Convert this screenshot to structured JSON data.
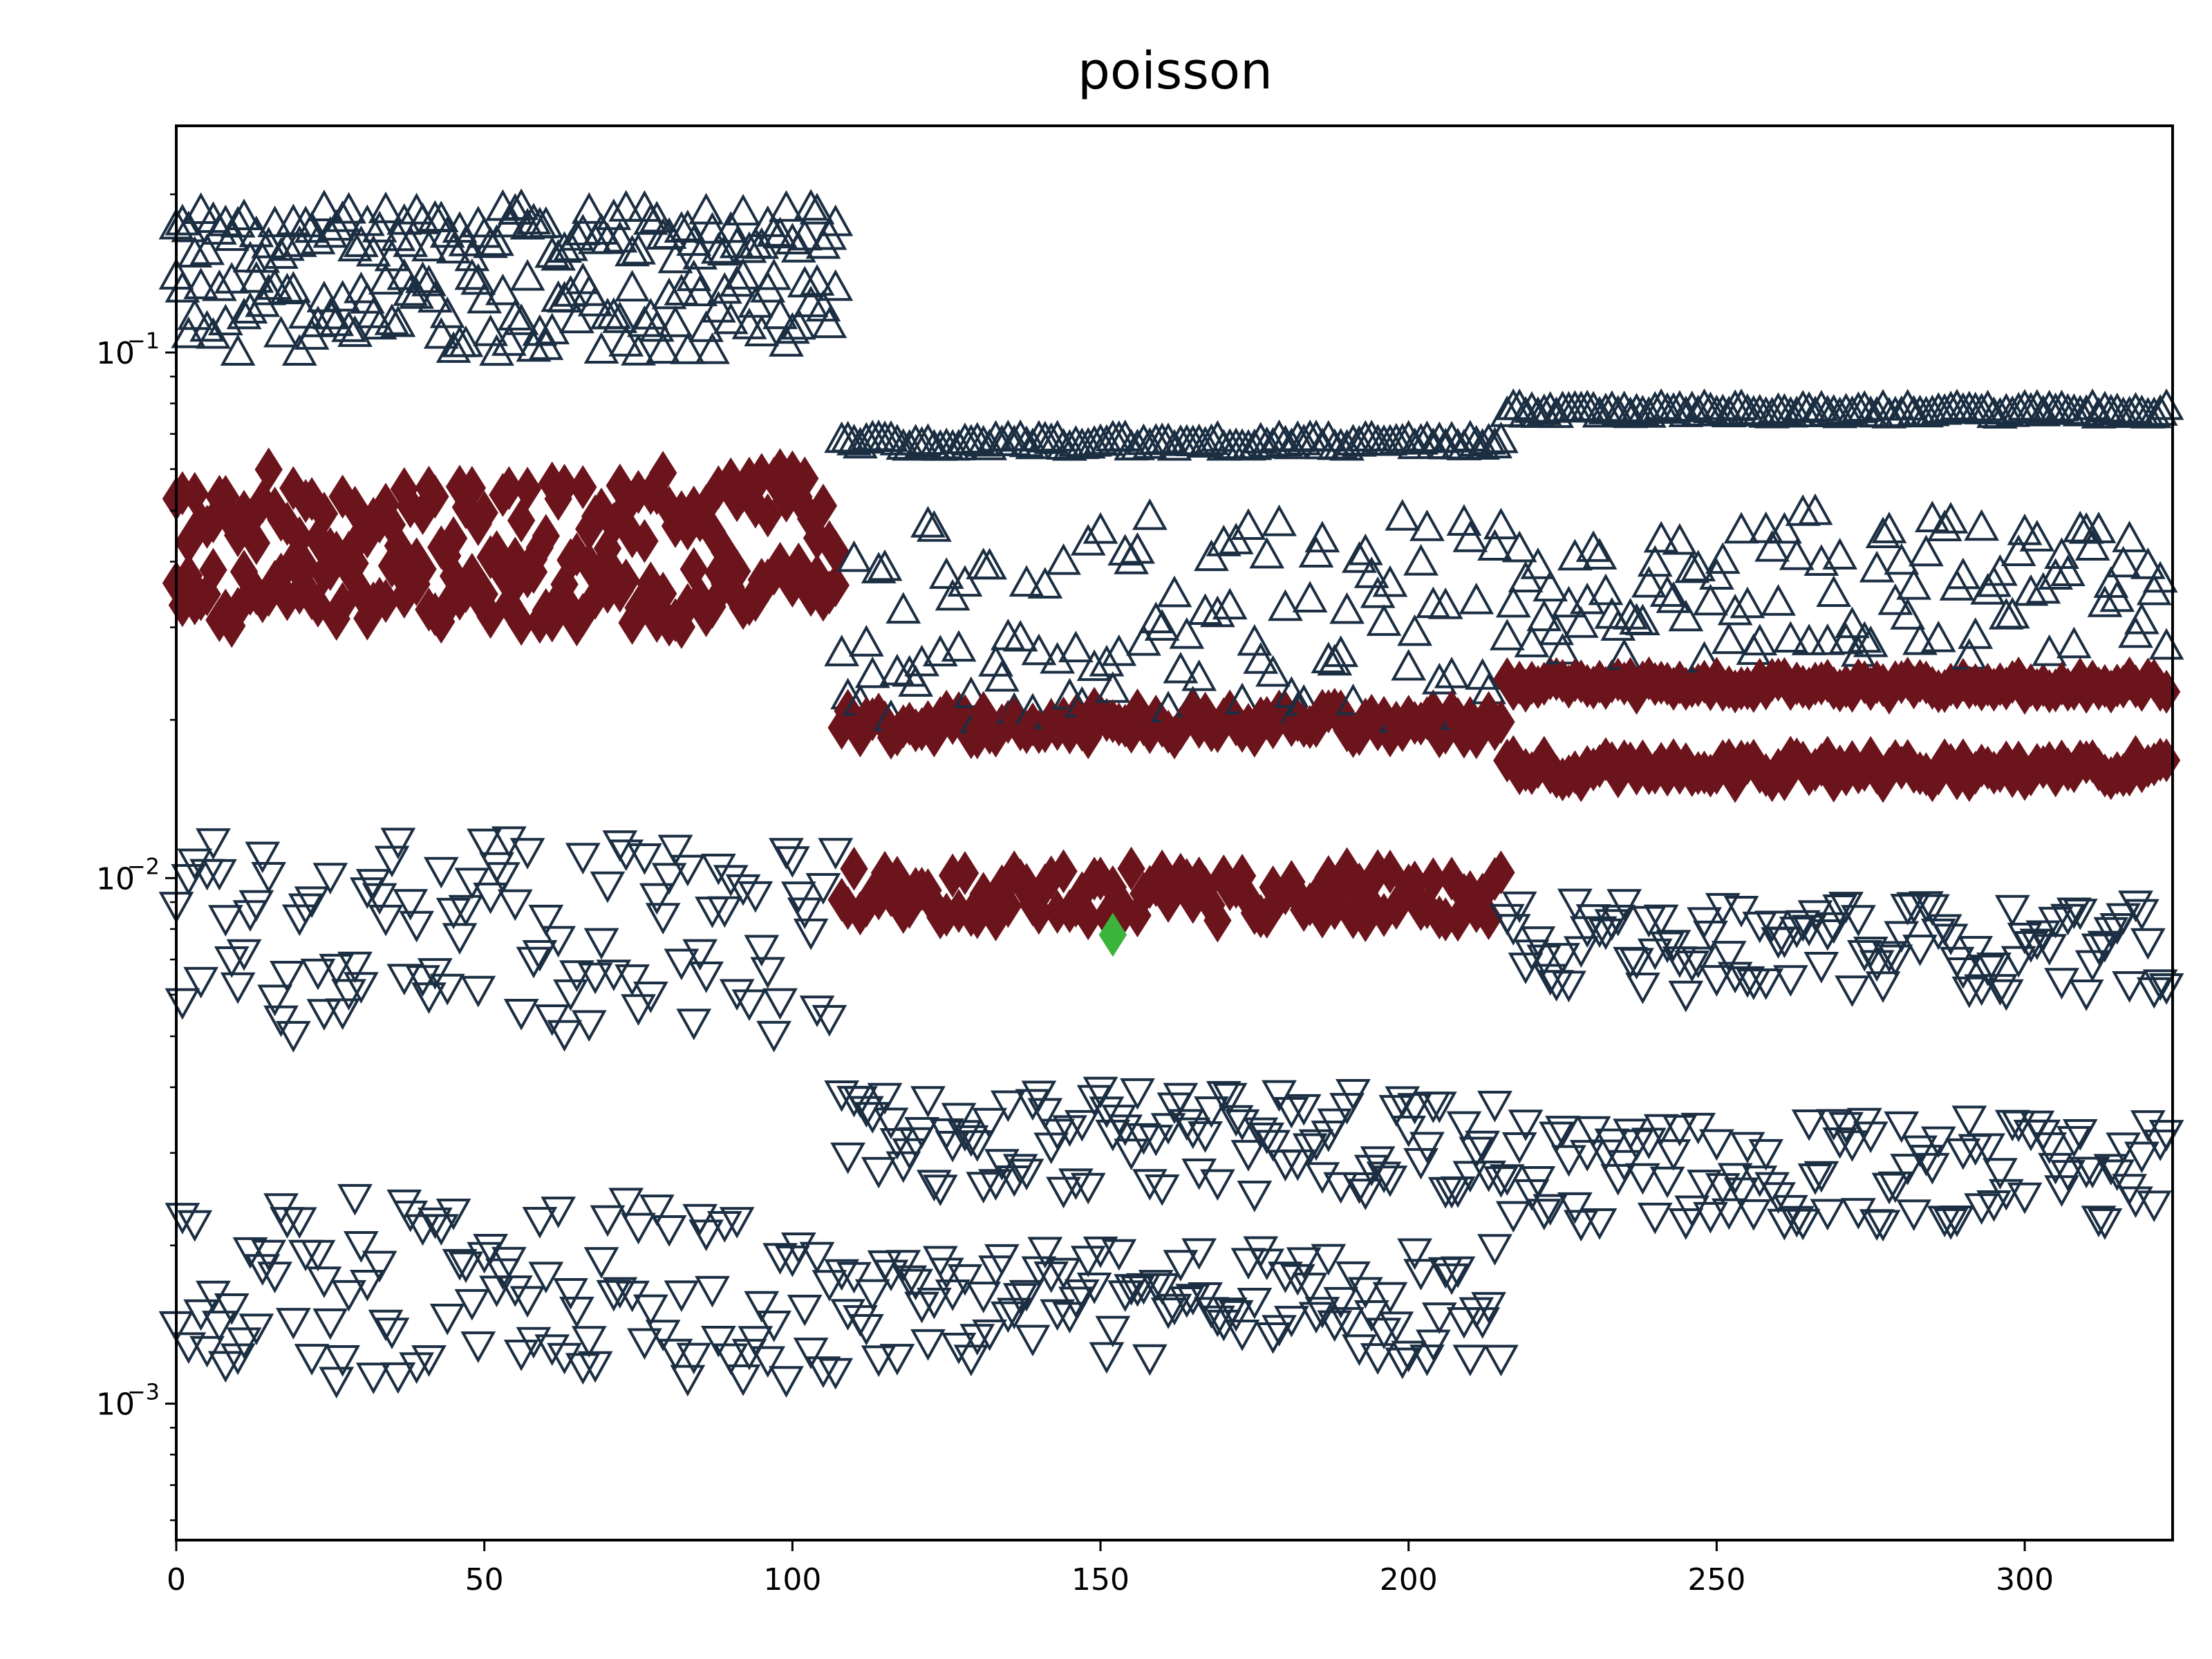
{
  "chart_data": {
    "type": "scatter",
    "title": "poisson",
    "xlabel": "",
    "ylabel": "",
    "xlim": [
      0,
      324
    ],
    "ylim": [
      0.00055,
      0.27
    ],
    "yscale": "log",
    "grid": false,
    "legend": "none",
    "x_ticks": [
      0,
      50,
      100,
      150,
      200,
      250,
      300
    ],
    "x_tick_labels": [
      "0",
      "50",
      "100",
      "150",
      "200",
      "250",
      "300"
    ],
    "y_ticks": [
      0.001,
      0.01,
      0.1
    ],
    "y_tick_labels": [
      {
        "base": "10",
        "exp": "−3"
      },
      {
        "base": "10",
        "exp": "−2"
      },
      {
        "base": "10",
        "exp": "−1"
      }
    ],
    "colors": {
      "upper": "#1b2e42",
      "lower": "#1b2e42",
      "mid": "#6b141c",
      "highlight": "#3cb43c"
    },
    "highlight_point": {
      "x": 152,
      "y": 0.0078
    },
    "segments": [
      {
        "x0": 0,
        "x1": 107,
        "upper_top": [
          0.15,
          0.19
        ],
        "upper_low": [
          0.1,
          0.14
        ],
        "mid_a": [
          0.04,
          0.06
        ],
        "mid_b": [
          0.03,
          0.04
        ],
        "low_a": [
          0.005,
          0.012
        ],
        "low_b": [
          0.0011,
          0.0025
        ]
      },
      {
        "x0": 108,
        "x1": 215,
        "upper_top": [
          0.066,
          0.069
        ],
        "upper_low": [
          0.02,
          0.05
        ],
        "mid_a": [
          0.0185,
          0.021
        ],
        "mid_b": [
          0.0083,
          0.0105
        ],
        "low_a": [
          0.0025,
          0.004
        ],
        "low_b": [
          0.0012,
          0.002
        ]
      },
      {
        "x0": 216,
        "x1": 323,
        "upper_top": [
          0.076,
          0.079
        ],
        "upper_low": [
          0.026,
          0.05
        ],
        "mid_a": [
          0.0225,
          0.024
        ],
        "mid_b": [
          0.0153,
          0.017
        ],
        "low_a": [
          0.006,
          0.009
        ],
        "low_b": [
          0.0022,
          0.0035
        ]
      }
    ]
  }
}
